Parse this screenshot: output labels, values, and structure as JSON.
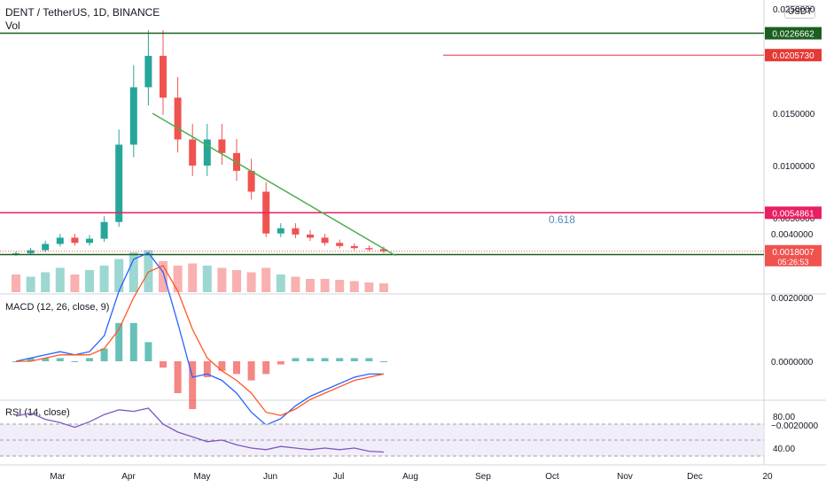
{
  "header": {
    "symbol": "DENT / TetherUS, 1D, BINANCE",
    "volume_label": "Vol",
    "currency_badge": "USDT"
  },
  "colors": {
    "up": "#26a69a",
    "down": "#ef5350",
    "dark_green_line": "#1b5e20",
    "red_line": "#e53935",
    "magenta_line": "#e91e63",
    "trendline": "#4caf50",
    "macd_line": "#2962ff",
    "signal_line": "#ff5722",
    "rsi_line": "#7e57c2",
    "rsi_band": "#ede7f6",
    "fib_text": "#5b8bb5"
  },
  "indicators": {
    "macd_label": "MACD (12, 26, close, 9)",
    "rsi_label": "RSI (14, close)"
  },
  "chart_data": [
    {
      "type": "candlestick",
      "title": "DENT / TetherUS, 1D, BINANCE",
      "series": [
        {
          "name": "DENT / TetherUS",
          "x": [
            "Feb 1",
            "Feb 8",
            "Feb 15",
            "Feb 22",
            "Mar 1",
            "Mar 8",
            "Mar 15",
            "Mar 22",
            "Mar 29",
            "Apr 2",
            "Apr 5",
            "Apr 12",
            "Apr 19",
            "Apr 26",
            "May 3",
            "May 10",
            "May 17",
            "May 24",
            "May 31",
            "Jun 7",
            "Jun 14",
            "Jun 21",
            "Jun 28",
            "Jul 5",
            "Jul 12",
            "Jul 19"
          ],
          "values": [
            0.0016,
            0.0019,
            0.0025,
            0.0031,
            0.0026,
            0.003,
            0.0046,
            0.012,
            0.0175,
            0.0205,
            0.0165,
            0.0125,
            0.01,
            0.0125,
            0.0112,
            0.0095,
            0.0075,
            0.0035,
            0.004,
            0.0034,
            0.0031,
            0.0026,
            0.0023,
            0.0021,
            0.002,
            0.0018
          ]
        }
      ],
      "volume": [
        0.4,
        0.35,
        0.45,
        0.55,
        0.4,
        0.5,
        0.6,
        0.75,
        0.9,
        0.95,
        0.7,
        0.6,
        0.65,
        0.6,
        0.55,
        0.5,
        0.45,
        0.55,
        0.4,
        0.35,
        0.3,
        0.3,
        0.28,
        0.25,
        0.22,
        0.2
      ],
      "x_ticks": [
        "Mar",
        "Apr",
        "May",
        "Jun",
        "Jul",
        "Aug",
        "Sep",
        "Oct",
        "Nov",
        "Dec",
        "20"
      ],
      "y_ticks": [
        "0.0250000",
        "0.0150000",
        "0.0100000",
        "0.0050000"
      ],
      "horizontal_levels": [
        {
          "value": 0.0226662,
          "label": "0.0226662",
          "color": "#1b5e20"
        },
        {
          "value": 0.020573,
          "label": "0.0205730",
          "color": "#e53935"
        },
        {
          "value": 0.0054861,
          "label": "0.0054861",
          "color": "#e91e63"
        },
        {
          "value": 0.0014845,
          "label": "0.0014845",
          "color": "#1b5e20"
        }
      ],
      "current_price": {
        "value": 0.0018007,
        "label": "0.0018007",
        "countdown": "05:26:53"
      },
      "trendline": {
        "from": {
          "x": "Apr 8",
          "y": 0.015
        },
        "to": {
          "x": "Jul 25",
          "y": 0.0014
        }
      },
      "annotations": [
        {
          "text": "0.618",
          "x": "Aug 27",
          "y": 0.005
        }
      ]
    },
    {
      "type": "line",
      "title": "MACD (12, 26, close, 9)",
      "x": [
        "Feb 1",
        "Feb 8",
        "Feb 15",
        "Feb 22",
        "Mar 1",
        "Mar 8",
        "Mar 15",
        "Mar 22",
        "Mar 29",
        "Apr 2",
        "Apr 5",
        "Apr 12",
        "Apr 19",
        "Apr 26",
        "May 3",
        "May 10",
        "May 17",
        "May 24",
        "May 31",
        "Jun 7",
        "Jun 14",
        "Jun 21",
        "Jun 28",
        "Jul 5",
        "Jul 12",
        "Jul 19"
      ],
      "series": [
        {
          "name": "MACD",
          "values": [
            0.0,
            0.0001,
            0.0002,
            0.0003,
            0.0002,
            0.0003,
            0.0008,
            0.0022,
            0.0032,
            0.0034,
            0.0028,
            0.0012,
            -0.0005,
            -0.0004,
            -0.0006,
            -0.001,
            -0.0016,
            -0.002,
            -0.0018,
            -0.0014,
            -0.0011,
            -0.0009,
            -0.0007,
            -0.0005,
            -0.0004,
            -0.0004
          ]
        },
        {
          "name": "Signal",
          "values": [
            0.0,
            0.0,
            0.0001,
            0.0002,
            0.0002,
            0.0002,
            0.0004,
            0.001,
            0.002,
            0.0028,
            0.003,
            0.0022,
            0.001,
            0.0001,
            -0.0003,
            -0.0006,
            -0.001,
            -0.0016,
            -0.0017,
            -0.0015,
            -0.0012,
            -0.001,
            -0.0008,
            -0.0006,
            -0.0005,
            -0.0004
          ]
        }
      ],
      "ylim": [
        -0.0025,
        0.0045
      ],
      "y_ticks": [
        "0.0040000",
        "0.0020000",
        "0.0000000",
        "−0.0020000"
      ]
    },
    {
      "type": "line",
      "title": "RSI (14, close)",
      "x": [
        "Feb 1",
        "Feb 8",
        "Feb 15",
        "Feb 22",
        "Mar 1",
        "Mar 8",
        "Mar 15",
        "Mar 22",
        "Mar 29",
        "Apr 2",
        "Apr 5",
        "Apr 12",
        "Apr 19",
        "Apr 26",
        "May 3",
        "May 10",
        "May 17",
        "May 24",
        "May 31",
        "Jun 7",
        "Jun 14",
        "Jun 21",
        "Jun 28",
        "Jul 5",
        "Jul 12",
        "Jul 19"
      ],
      "series": [
        {
          "name": "RSI",
          "values": [
            80,
            84,
            76,
            72,
            66,
            73,
            82,
            88,
            86,
            90,
            70,
            60,
            54,
            48,
            50,
            44,
            40,
            38,
            42,
            40,
            38,
            40,
            38,
            40,
            36,
            35
          ]
        }
      ],
      "ylim": [
        30,
        90
      ],
      "y_ticks": [
        "80.00",
        "40.00"
      ],
      "band": [
        30,
        70
      ]
    }
  ]
}
